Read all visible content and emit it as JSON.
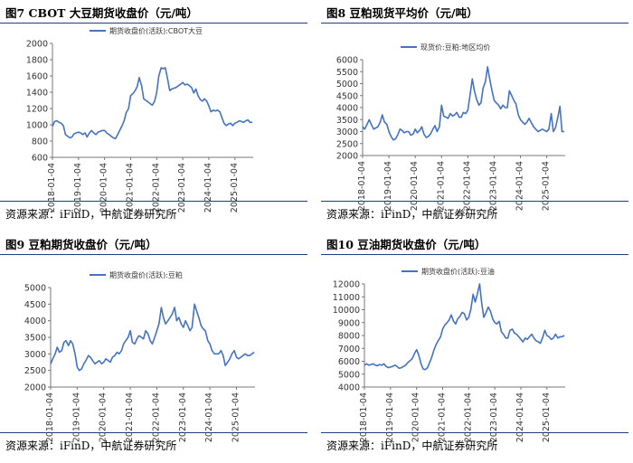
{
  "source_text": "资源来源：iFinD，中航证券研究所",
  "line_color": "#4472C4",
  "chart_data": [
    {
      "type": "line",
      "title": "图7  CBOT 大豆期货收盘价（元/吨）",
      "xlabel": "",
      "ylabel": "",
      "ylim": [
        600,
        2000
      ],
      "yticks": [
        600,
        800,
        1000,
        1200,
        1400,
        1600,
        1800,
        2000
      ],
      "x_tick_labels": [
        "2018-01-04",
        "2019-01-04",
        "2020-01-04",
        "2021-01-04",
        "2022-01-04",
        "2023-01-04",
        "2024-01-04",
        "2025-01-04"
      ],
      "x_range": [
        2018.0,
        2025.7
      ],
      "grid": false,
      "legend": "top-center",
      "series": [
        {
          "name": "期货收盘价(活跃):CBOT大豆",
          "x": [
            2018.0,
            2018.08,
            2018.17,
            2018.25,
            2018.33,
            2018.42,
            2018.5,
            2018.58,
            2018.67,
            2018.75,
            2018.83,
            2018.92,
            2019.0,
            2019.08,
            2019.17,
            2019.25,
            2019.33,
            2019.42,
            2019.5,
            2019.58,
            2019.67,
            2019.75,
            2019.83,
            2019.92,
            2020.0,
            2020.08,
            2020.17,
            2020.25,
            2020.33,
            2020.42,
            2020.5,
            2020.58,
            2020.67,
            2020.75,
            2020.83,
            2020.92,
            2021.0,
            2021.08,
            2021.17,
            2021.25,
            2021.33,
            2021.42,
            2021.5,
            2021.58,
            2021.67,
            2021.75,
            2021.83,
            2021.92,
            2022.0,
            2022.08,
            2022.17,
            2022.25,
            2022.33,
            2022.42,
            2022.5,
            2022.58,
            2022.67,
            2022.75,
            2022.83,
            2022.92,
            2023.0,
            2023.08,
            2023.17,
            2023.25,
            2023.33,
            2023.42,
            2023.5,
            2023.58,
            2023.67,
            2023.75,
            2023.83,
            2023.92,
            2024.0,
            2024.08,
            2024.17,
            2024.25,
            2024.33,
            2024.42,
            2024.5,
            2024.58,
            2024.67,
            2024.75,
            2024.83,
            2024.92,
            2025.0,
            2025.08,
            2025.17,
            2025.25,
            2025.33,
            2025.42,
            2025.5,
            2025.58,
            2025.67
          ],
          "values": [
            980,
            1040,
            1050,
            1030,
            1020,
            990,
            880,
            860,
            840,
            850,
            890,
            900,
            910,
            900,
            880,
            900,
            850,
            900,
            930,
            900,
            880,
            910,
            920,
            930,
            930,
            900,
            880,
            860,
            840,
            830,
            880,
            930,
            990,
            1050,
            1150,
            1200,
            1360,
            1380,
            1420,
            1470,
            1580,
            1480,
            1320,
            1300,
            1280,
            1260,
            1240,
            1290,
            1400,
            1600,
            1700,
            1690,
            1700,
            1560,
            1420,
            1440,
            1450,
            1460,
            1480,
            1500,
            1520,
            1490,
            1500,
            1480,
            1460,
            1390,
            1440,
            1360,
            1310,
            1290,
            1320,
            1290,
            1230,
            1160,
            1180,
            1170,
            1180,
            1160,
            1090,
            1020,
            990,
            1010,
            1020,
            990,
            1020,
            1030,
            1050,
            1040,
            1030,
            1050,
            1060,
            1030,
            1030
          ]
        }
      ]
    },
    {
      "type": "line",
      "title": "图8  豆粕现货平均价（元/吨）",
      "xlabel": "",
      "ylabel": "",
      "ylim": [
        2000,
        6000
      ],
      "yticks": [
        2000,
        2500,
        3000,
        3500,
        4000,
        4500,
        5000,
        5500,
        6000
      ],
      "x_tick_labels": [
        "2018-01-04",
        "2019-01-04",
        "2020-01-04",
        "2021-01-04",
        "2022-01-04",
        "2023-01-04",
        "2024-01-04",
        "2025-01-04"
      ],
      "x_range": [
        2018.0,
        2025.7
      ],
      "grid": false,
      "legend": "top-center",
      "series": [
        {
          "name": "现货价:豆粕:地区均价",
          "x": [
            2018.0,
            2018.08,
            2018.17,
            2018.25,
            2018.33,
            2018.42,
            2018.5,
            2018.58,
            2018.67,
            2018.75,
            2018.83,
            2018.92,
            2019.0,
            2019.08,
            2019.17,
            2019.25,
            2019.33,
            2019.42,
            2019.5,
            2019.58,
            2019.67,
            2019.75,
            2019.83,
            2019.92,
            2020.0,
            2020.08,
            2020.17,
            2020.25,
            2020.33,
            2020.42,
            2020.5,
            2020.58,
            2020.67,
            2020.75,
            2020.83,
            2020.92,
            2021.0,
            2021.08,
            2021.17,
            2021.25,
            2021.33,
            2021.42,
            2021.5,
            2021.58,
            2021.67,
            2021.75,
            2021.83,
            2021.92,
            2022.0,
            2022.08,
            2022.17,
            2022.25,
            2022.33,
            2022.42,
            2022.5,
            2022.58,
            2022.67,
            2022.75,
            2022.83,
            2022.92,
            2023.0,
            2023.08,
            2023.17,
            2023.25,
            2023.33,
            2023.42,
            2023.5,
            2023.58,
            2023.67,
            2023.75,
            2023.83,
            2023.92,
            2024.0,
            2024.08,
            2024.17,
            2024.25,
            2024.33,
            2024.42,
            2024.5,
            2024.58,
            2024.67,
            2024.75,
            2024.83,
            2024.92,
            2025.0,
            2025.08,
            2025.17,
            2025.25,
            2025.33,
            2025.42,
            2025.5,
            2025.58,
            2025.67
          ],
          "values": [
            3200,
            3100,
            3300,
            3500,
            3300,
            3100,
            3150,
            3200,
            3400,
            3700,
            3400,
            3300,
            3000,
            2800,
            2650,
            2700,
            2850,
            3100,
            3050,
            2950,
            3000,
            3000,
            2850,
            2900,
            3100,
            2950,
            3050,
            3200,
            2900,
            2750,
            2800,
            2900,
            3100,
            3250,
            3000,
            3200,
            4100,
            3650,
            3600,
            3550,
            3750,
            3650,
            3700,
            3800,
            3600,
            3600,
            3800,
            3750,
            3900,
            4500,
            5200,
            4700,
            4350,
            4100,
            4200,
            4800,
            5100,
            5700,
            5200,
            4700,
            4300,
            4200,
            4100,
            3950,
            4100,
            4000,
            4000,
            4700,
            4500,
            4300,
            4150,
            3700,
            3500,
            3400,
            3300,
            3400,
            3550,
            3350,
            3200,
            3100,
            3000,
            3050,
            3100,
            3050,
            3000,
            3100,
            3750,
            3000,
            3150,
            3600,
            4050,
            3000,
            3000
          ]
        }
      ]
    },
    {
      "type": "line",
      "title": "图9  豆粕期货收盘价（元/吨）",
      "xlabel": "",
      "ylabel": "",
      "ylim": [
        2000,
        5000
      ],
      "yticks": [
        2000,
        2500,
        3000,
        3500,
        4000,
        4500,
        5000
      ],
      "x_tick_labels": [
        "2018-01-04",
        "2019-01-04",
        "2020-01-04",
        "2021-01-04",
        "2022-01-04",
        "2023-01-04",
        "2024-01-04",
        "2025-01-04"
      ],
      "x_range": [
        2018.0,
        2025.7
      ],
      "grid": false,
      "legend": "top-center",
      "series": [
        {
          "name": "期货收盘价(活跃):豆粕",
          "x": [
            2018.0,
            2018.08,
            2018.17,
            2018.25,
            2018.33,
            2018.42,
            2018.5,
            2018.58,
            2018.67,
            2018.75,
            2018.83,
            2018.92,
            2019.0,
            2019.08,
            2019.17,
            2019.25,
            2019.33,
            2019.42,
            2019.5,
            2019.58,
            2019.67,
            2019.75,
            2019.83,
            2019.92,
            2020.0,
            2020.08,
            2020.17,
            2020.25,
            2020.33,
            2020.42,
            2020.5,
            2020.58,
            2020.67,
            2020.75,
            2020.83,
            2020.92,
            2021.0,
            2021.08,
            2021.17,
            2021.25,
            2021.33,
            2021.42,
            2021.5,
            2021.58,
            2021.67,
            2021.75,
            2021.83,
            2021.92,
            2022.0,
            2022.08,
            2022.17,
            2022.25,
            2022.33,
            2022.42,
            2022.5,
            2022.58,
            2022.67,
            2022.75,
            2022.83,
            2022.92,
            2023.0,
            2023.08,
            2023.17,
            2023.25,
            2023.33,
            2023.42,
            2023.5,
            2023.58,
            2023.67,
            2023.75,
            2023.83,
            2023.92,
            2024.0,
            2024.08,
            2024.17,
            2024.25,
            2024.33,
            2024.42,
            2024.5,
            2024.58,
            2024.67,
            2024.75,
            2024.83,
            2024.92,
            2025.0,
            2025.08,
            2025.17,
            2025.25,
            2025.33,
            2025.42,
            2025.5,
            2025.58,
            2025.67
          ],
          "values": [
            2700,
            2850,
            3000,
            3200,
            3050,
            3100,
            3350,
            3400,
            3250,
            3400,
            3300,
            3000,
            2600,
            2500,
            2550,
            2700,
            2800,
            2950,
            2900,
            2800,
            2700,
            2750,
            2800,
            2700,
            2750,
            2850,
            2800,
            2750,
            2900,
            2950,
            3050,
            3000,
            3100,
            3300,
            3400,
            3500,
            3700,
            3350,
            3300,
            3450,
            3550,
            3500,
            3450,
            3700,
            3600,
            3400,
            3300,
            3500,
            3700,
            3900,
            4400,
            4100,
            3900,
            4000,
            4100,
            4200,
            4400,
            4000,
            4100,
            3900,
            3800,
            4000,
            3850,
            3700,
            3800,
            4500,
            4300,
            4100,
            3850,
            3750,
            3700,
            3400,
            3300,
            3100,
            3000,
            3000,
            3000,
            3100,
            2950,
            2650,
            2750,
            2850,
            3000,
            3100,
            2900,
            2850,
            2900,
            2950,
            3000,
            2950,
            2950,
            3000,
            3050
          ]
        }
      ]
    },
    {
      "type": "line",
      "title": "图10  豆油期货收盘价（元/吨）",
      "xlabel": "",
      "ylabel": "",
      "ylim": [
        4000,
        12000
      ],
      "yticks": [
        4000,
        5000,
        6000,
        7000,
        8000,
        9000,
        10000,
        11000,
        12000
      ],
      "x_tick_labels": [
        "2018-01-04",
        "2019-01-04",
        "2020-01-04",
        "2021-01-04",
        "2022-01-04",
        "2023-01-04",
        "2024-01-04",
        "2025-01-04"
      ],
      "x_range": [
        2018.0,
        2025.7
      ],
      "grid": false,
      "legend": "top-center",
      "series": [
        {
          "name": "期货收盘价(活跃):豆油",
          "x": [
            2018.0,
            2018.08,
            2018.17,
            2018.25,
            2018.33,
            2018.42,
            2018.5,
            2018.58,
            2018.67,
            2018.75,
            2018.83,
            2018.92,
            2019.0,
            2019.08,
            2019.17,
            2019.25,
            2019.33,
            2019.42,
            2019.5,
            2019.58,
            2019.67,
            2019.75,
            2019.83,
            2019.92,
            2020.0,
            2020.08,
            2020.17,
            2020.25,
            2020.33,
            2020.42,
            2020.5,
            2020.58,
            2020.67,
            2020.75,
            2020.83,
            2020.92,
            2021.0,
            2021.08,
            2021.17,
            2021.25,
            2021.33,
            2021.42,
            2021.5,
            2021.58,
            2021.67,
            2021.75,
            2021.83,
            2021.92,
            2022.0,
            2022.08,
            2022.17,
            2022.25,
            2022.33,
            2022.42,
            2022.5,
            2022.58,
            2022.67,
            2022.75,
            2022.83,
            2022.92,
            2023.0,
            2023.08,
            2023.17,
            2023.25,
            2023.33,
            2023.42,
            2023.5,
            2023.58,
            2023.67,
            2023.75,
            2023.83,
            2023.92,
            2024.0,
            2024.08,
            2024.17,
            2024.25,
            2024.33,
            2024.42,
            2024.5,
            2024.58,
            2024.67,
            2024.75,
            2024.83,
            2024.92,
            2025.0,
            2025.08,
            2025.17,
            2025.25,
            2025.33,
            2025.42,
            2025.5,
            2025.58,
            2025.67
          ],
          "values": [
            5700,
            5800,
            5700,
            5750,
            5800,
            5700,
            5650,
            5750,
            5700,
            5800,
            5600,
            5500,
            5550,
            5600,
            5700,
            5600,
            5450,
            5500,
            5600,
            5700,
            5900,
            6050,
            6200,
            6600,
            6900,
            6500,
            5800,
            5400,
            5350,
            5500,
            5900,
            6300,
            6900,
            7300,
            7600,
            7900,
            8500,
            8800,
            9000,
            9200,
            9600,
            9100,
            8900,
            9300,
            9500,
            9800,
            9700,
            9200,
            9400,
            10000,
            11200,
            10600,
            11200,
            12000,
            10500,
            9400,
            9800,
            10200,
            9900,
            9300,
            9000,
            8900,
            9100,
            8300,
            8100,
            7800,
            7800,
            8400,
            8500,
            8200,
            8100,
            7900,
            7700,
            7500,
            7800,
            7700,
            7900,
            8100,
            7800,
            7600,
            7500,
            7400,
            7800,
            8400,
            8000,
            7900,
            7700,
            7800,
            8100,
            7800,
            7900,
            7900,
            8000
          ]
        }
      ]
    }
  ]
}
